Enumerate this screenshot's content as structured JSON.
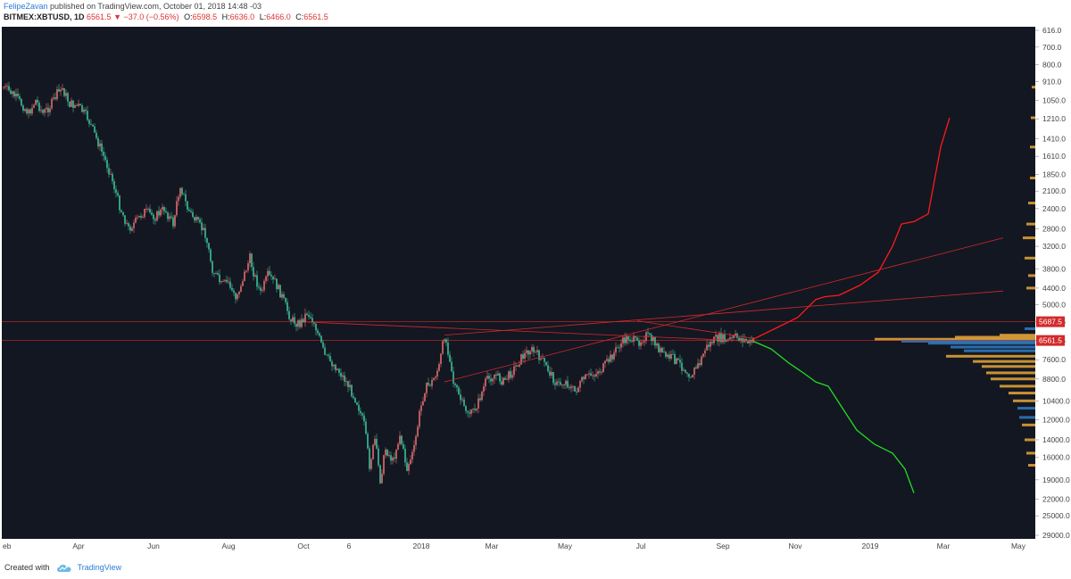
{
  "header": {
    "author": "FelipeZavan",
    "published_text": "published on TradingView.com, October 01, 2018 14:48 -03",
    "symbol": "BITMEX:XBTUSD, 1D",
    "last": "6561.5",
    "change": "−37.0 (−0.56%)",
    "open_label": "O:",
    "open": "6598.5",
    "high_label": "H:",
    "high": "6636.0",
    "low_label": "L:",
    "low": "6466.0",
    "close_label": "C:",
    "close": "6561.5"
  },
  "footer": {
    "created_with": "Created with",
    "brand": "TradingView"
  },
  "chart_data": {
    "type": "candlestick",
    "inverted_log_scale": true,
    "price_axis_ticks": [
      "616.0",
      "700.0",
      "800.0",
      "910.0",
      "1050.0",
      "1210.0",
      "1410.0",
      "1610.0",
      "1850.0",
      "2100.0",
      "2400.0",
      "2800.0",
      "3200.0",
      "3800.0",
      "4400.0",
      "5000.0",
      "5687.5",
      "6561.5",
      "7600.0",
      "8800.0",
      "10400.0",
      "12000.0",
      "14000.0",
      "16000.0",
      "19000.0",
      "22000.0",
      "25000.0",
      "29000.0"
    ],
    "time_axis_ticks": [
      "eb",
      "Apr",
      "Jun",
      "Aug",
      "Oct",
      "6",
      "2018",
      "Mar",
      "May",
      "Jul",
      "Sep",
      "Nov",
      "2019",
      "Mar",
      "May"
    ],
    "price_label_current": "6561.5",
    "price_label_level": "5687.5",
    "colors": {
      "background": "#131722",
      "up": "#3dbf98",
      "down": "#e06e6e",
      "grid": "#1e222d",
      "trend": "#d32a2a",
      "projection_up": "#ff1a1a",
      "projection_down": "#22dd22",
      "volume_profile_blue": "#2f7cc4",
      "volume_profile_orange": "#e8a838",
      "axis_bg": "#ffffff"
    },
    "price_path": [
      [
        0,
        950
      ],
      [
        5,
        1000
      ],
      [
        10,
        1080
      ],
      [
        14,
        1160
      ],
      [
        18,
        1050
      ],
      [
        22,
        1160
      ],
      [
        26,
        1100
      ],
      [
        30,
        1000
      ],
      [
        33,
        960
      ],
      [
        37,
        1080
      ],
      [
        42,
        1100
      ],
      [
        47,
        1200
      ],
      [
        54,
        1500
      ],
      [
        60,
        1850
      ],
      [
        65,
        2350
      ],
      [
        70,
        2800
      ],
      [
        74,
        2650
      ],
      [
        79,
        2450
      ],
      [
        85,
        2550
      ],
      [
        90,
        2400
      ],
      [
        95,
        2700
      ],
      [
        99,
        2000
      ],
      [
        103,
        2400
      ],
      [
        108,
        2650
      ],
      [
        113,
        2900
      ],
      [
        117,
        3800
      ],
      [
        122,
        4300
      ],
      [
        126,
        4200
      ],
      [
        130,
        4800
      ],
      [
        134,
        4100
      ],
      [
        138,
        3500
      ],
      [
        140,
        3900
      ],
      [
        144,
        4600
      ],
      [
        148,
        4000
      ],
      [
        152,
        4200
      ],
      [
        156,
        4700
      ],
      [
        161,
        5600
      ],
      [
        166,
        5800
      ],
      [
        170,
        5300
      ],
      [
        174,
        5700
      ],
      [
        180,
        7400
      ],
      [
        186,
        8000
      ],
      [
        192,
        9000
      ],
      [
        198,
        10500
      ],
      [
        202,
        12500
      ],
      [
        205,
        17000
      ],
      [
        208,
        14000
      ],
      [
        211,
        19000
      ],
      [
        214,
        15000
      ],
      [
        218,
        16500
      ],
      [
        222,
        13500
      ],
      [
        226,
        17500
      ],
      [
        230,
        15000
      ],
      [
        233,
        11500
      ],
      [
        236,
        9500
      ],
      [
        240,
        9000
      ],
      [
        244,
        8000
      ],
      [
        247,
        6300
      ],
      [
        250,
        7500
      ],
      [
        252,
        9000
      ],
      [
        255,
        10000
      ],
      [
        258,
        11000
      ],
      [
        262,
        11500
      ],
      [
        266,
        10500
      ],
      [
        270,
        9000
      ],
      [
        275,
        8500
      ],
      [
        280,
        9000
      ],
      [
        285,
        8300
      ],
      [
        290,
        7500
      ],
      [
        295,
        7000
      ],
      [
        300,
        7400
      ],
      [
        305,
        8200
      ],
      [
        310,
        9200
      ],
      [
        315,
        9000
      ],
      [
        320,
        9700
      ],
      [
        325,
        8800
      ],
      [
        330,
        8500
      ],
      [
        335,
        8200
      ],
      [
        340,
        7500
      ],
      [
        345,
        6800
      ],
      [
        350,
        6400
      ],
      [
        355,
        6700
      ],
      [
        360,
        6300
      ],
      [
        365,
        6700
      ],
      [
        370,
        7400
      ],
      [
        375,
        7500
      ],
      [
        380,
        8000
      ],
      [
        385,
        8500
      ],
      [
        390,
        7800
      ],
      [
        393,
        7000
      ],
      [
        397,
        6600
      ],
      [
        401,
        6400
      ],
      [
        405,
        6600
      ],
      [
        410,
        6400
      ],
      [
        414,
        6500
      ],
      [
        418,
        6700
      ],
      [
        420,
        6600
      ]
    ],
    "trendlines": [
      {
        "from": [
          247,
          6300
        ],
        "to": [
          420,
          6600
        ],
        "extend_to": [
          560,
          4500
        ]
      },
      {
        "from": [
          247,
          9000
        ],
        "to": [
          420,
          6600
        ],
        "extend_to": [
          560,
          3000
        ]
      },
      {
        "from": [
          170,
          5700
        ],
        "to": [
          420,
          6600
        ],
        "extend_to": [
          420,
          6600
        ]
      },
      {
        "from": [
          355,
          5650
        ],
        "to": [
          420,
          6450
        ],
        "extend_to": [
          420,
          6450
        ]
      }
    ],
    "horizontal_levels": [
      5687.5,
      6561.5
    ],
    "projection_up": [
      [
        420,
        6500
      ],
      [
        432,
        6000
      ],
      [
        445,
        5500
      ],
      [
        455,
        4800
      ],
      [
        460,
        4700
      ],
      [
        468,
        4650
      ],
      [
        480,
        4300
      ],
      [
        490,
        3900
      ],
      [
        498,
        3200
      ],
      [
        503,
        2700
      ],
      [
        510,
        2650
      ],
      [
        518,
        2500
      ],
      [
        525,
        1500
      ],
      [
        530,
        1200
      ]
    ],
    "projection_down": [
      [
        420,
        6600
      ],
      [
        430,
        7000
      ],
      [
        440,
        7800
      ],
      [
        448,
        8400
      ],
      [
        455,
        9000
      ],
      [
        462,
        9300
      ],
      [
        470,
        11000
      ],
      [
        478,
        13000
      ],
      [
        488,
        14500
      ],
      [
        498,
        15500
      ],
      [
        505,
        17500
      ],
      [
        510,
        21000
      ]
    ],
    "volume_profile": [
      {
        "price": 6000,
        "w": 12,
        "c": "blue"
      },
      {
        "price": 6300,
        "w": 40,
        "c": "orange"
      },
      {
        "price": 6400,
        "w": 90,
        "c": "orange"
      },
      {
        "price": 6500,
        "w": 180,
        "c": "orange"
      },
      {
        "price": 6600,
        "w": 150,
        "c": "blue"
      },
      {
        "price": 6700,
        "w": 120,
        "c": "blue"
      },
      {
        "price": 6900,
        "w": 95,
        "c": "blue"
      },
      {
        "price": 7100,
        "w": 80,
        "c": "blue"
      },
      {
        "price": 7400,
        "w": 100,
        "c": "orange"
      },
      {
        "price": 7700,
        "w": 70,
        "c": "orange"
      },
      {
        "price": 8000,
        "w": 60,
        "c": "orange"
      },
      {
        "price": 8400,
        "w": 55,
        "c": "orange"
      },
      {
        "price": 8800,
        "w": 50,
        "c": "orange"
      },
      {
        "price": 9300,
        "w": 40,
        "c": "orange"
      },
      {
        "price": 9800,
        "w": 30,
        "c": "orange"
      },
      {
        "price": 10400,
        "w": 25,
        "c": "orange"
      },
      {
        "price": 11000,
        "w": 20,
        "c": "blue"
      },
      {
        "price": 11800,
        "w": 18,
        "c": "blue"
      },
      {
        "price": 12500,
        "w": 15,
        "c": "orange"
      },
      {
        "price": 14000,
        "w": 12,
        "c": "orange"
      },
      {
        "price": 15500,
        "w": 10,
        "c": "orange"
      },
      {
        "price": 17000,
        "w": 8,
        "c": "orange"
      },
      {
        "price": 4400,
        "w": 10,
        "c": "orange"
      },
      {
        "price": 4000,
        "w": 8,
        "c": "orange"
      },
      {
        "price": 3500,
        "w": 12,
        "c": "orange"
      },
      {
        "price": 3000,
        "w": 14,
        "c": "orange"
      },
      {
        "price": 2700,
        "w": 10,
        "c": "orange"
      },
      {
        "price": 2300,
        "w": 8,
        "c": "orange"
      },
      {
        "price": 1900,
        "w": 6,
        "c": "orange"
      },
      {
        "price": 1500,
        "w": 6,
        "c": "orange"
      },
      {
        "price": 1200,
        "w": 5,
        "c": "orange"
      },
      {
        "price": 950,
        "w": 4,
        "c": "orange"
      }
    ]
  }
}
